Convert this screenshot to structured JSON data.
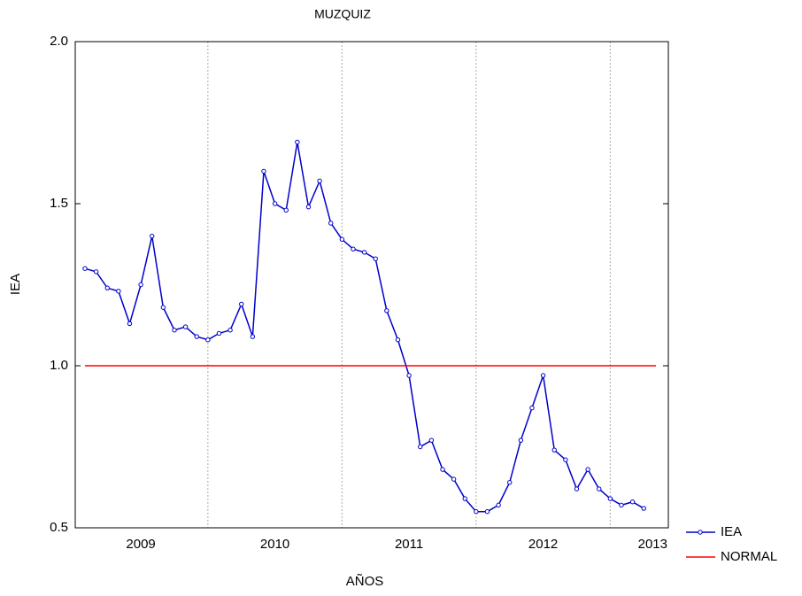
{
  "chart_data": {
    "type": "line",
    "title": "MUZQUIZ",
    "x_label": "AÑOS",
    "y_label": "IEA",
    "xlim": [
      0.13,
      53.2
    ],
    "xticks": [
      {
        "value": 6,
        "label": "2009"
      },
      {
        "value": 18,
        "label": "2010"
      },
      {
        "value": 30,
        "label": "2011"
      },
      {
        "value": 42,
        "label": "2012"
      },
      {
        "value": 51.8,
        "label": "2013"
      }
    ],
    "xgrid": [
      12,
      24,
      36,
      48
    ],
    "ylim": [
      0.5,
      2.0
    ],
    "yticks": [
      0.5,
      {
        "value": 1,
        "label": "1.0"
      },
      1.5,
      {
        "value": 2,
        "label": "2.0"
      }
    ],
    "legend": "bottom-right",
    "series": [
      {
        "name": "IEA",
        "color": "#0000cc",
        "markers": true,
        "x": [
          1,
          2,
          3,
          4,
          5,
          6,
          7,
          8,
          9,
          10,
          11,
          12,
          13,
          14,
          15,
          16,
          17,
          18,
          19,
          20,
          21,
          22,
          23,
          24,
          25,
          26,
          27,
          28,
          29,
          30,
          31,
          32,
          33,
          34,
          35,
          36,
          37,
          38,
          39,
          40,
          41,
          42,
          43,
          44,
          45,
          46,
          47,
          48,
          49,
          50,
          51
        ],
        "values": [
          1.3,
          1.29,
          1.24,
          1.23,
          1.13,
          1.25,
          1.4,
          1.18,
          1.11,
          1.12,
          1.09,
          1.08,
          1.1,
          1.11,
          1.19,
          1.09,
          1.6,
          1.5,
          1.48,
          1.69,
          1.49,
          1.57,
          1.44,
          1.39,
          1.36,
          1.35,
          1.33,
          1.17,
          1.08,
          0.97,
          0.75,
          0.77,
          0.68,
          0.65,
          0.59,
          0.55,
          0.55,
          0.57,
          0.64,
          0.77,
          0.87,
          0.97,
          0.74,
          0.71,
          0.62,
          0.68,
          0.62,
          0.59,
          0.57,
          0.58,
          0.56
        ]
      },
      {
        "name": "NORMAL",
        "color": "#ff0000",
        "markers": false,
        "x": [
          1,
          52.1
        ],
        "values": [
          1,
          1
        ]
      }
    ]
  }
}
